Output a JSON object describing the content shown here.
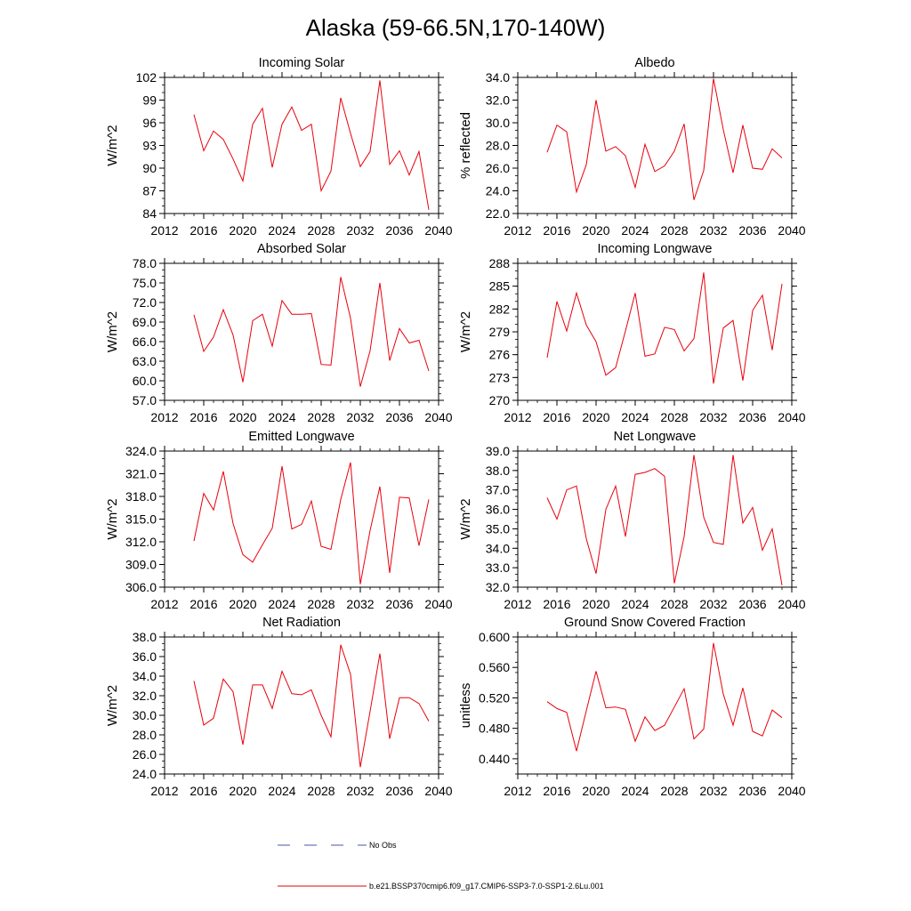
{
  "title": "Alaska (59-66.5N,170-140W)",
  "legend": [
    {
      "label": "No Obs",
      "color": "#4a56a8",
      "dash": true
    },
    {
      "label": "b.e21.BSSP370cmip6.f09_g17.CMIP6-SSP3-7.0-SSP1-2.6Lu.001",
      "color": "#e8000b",
      "dash": false
    }
  ],
  "colors": {
    "series": "#e8000b",
    "obs": "#4a56a8"
  },
  "chart_data": [
    {
      "type": "line",
      "title": "Incoming Solar",
      "ylabel": "W/m^2",
      "xlim": [
        2012,
        2040
      ],
      "ylim": [
        84,
        102
      ],
      "xticks": [
        2012,
        2016,
        2020,
        2024,
        2028,
        2032,
        2036,
        2040
      ],
      "yticks": [
        "84",
        "87",
        "90",
        "93",
        "96",
        "99",
        "102"
      ],
      "x": [
        2015,
        2016,
        2017,
        2018,
        2019,
        2020,
        2021,
        2022,
        2023,
        2024,
        2025,
        2026,
        2027,
        2028,
        2029,
        2030,
        2031,
        2032,
        2033,
        2034,
        2035,
        2036,
        2037,
        2038,
        2039
      ],
      "series": [
        {
          "name": "b.e21.BSSP370cmip6.f09_g17.CMIP6-SSP3-7.0-SSP1-2.6Lu.001",
          "values": [
            97.1,
            92.3,
            94.9,
            93.8,
            91.2,
            88.3,
            95.8,
            97.9,
            90.1,
            95.8,
            98.1,
            95.0,
            95.8,
            87.0,
            89.6,
            99.3,
            94.6,
            90.2,
            92.2,
            101.6,
            90.5,
            92.3,
            89.1,
            92.2,
            84.5
          ]
        }
      ]
    },
    {
      "type": "line",
      "title": "Albedo",
      "ylabel": "% reflected",
      "xlim": [
        2012,
        2040
      ],
      "ylim": [
        22,
        34
      ],
      "xticks": [
        2012,
        2016,
        2020,
        2024,
        2028,
        2032,
        2036,
        2040
      ],
      "yticks": [
        "22.0",
        "24.0",
        "26.0",
        "28.0",
        "30.0",
        "32.0",
        "34.0"
      ],
      "x": [
        2015,
        2016,
        2017,
        2018,
        2019,
        2020,
        2021,
        2022,
        2023,
        2024,
        2025,
        2026,
        2027,
        2028,
        2029,
        2030,
        2031,
        2032,
        2033,
        2034,
        2035,
        2036,
        2037,
        2038,
        2039
      ],
      "series": [
        {
          "name": "b.e21.BSSP370cmip6.f09_g17.CMIP6-SSP3-7.0-SSP1-2.6Lu.001",
          "values": [
            27.4,
            29.8,
            29.2,
            23.9,
            26.3,
            32.0,
            27.5,
            27.9,
            27.1,
            24.3,
            28.1,
            25.7,
            26.2,
            27.5,
            29.9,
            23.2,
            25.8,
            33.9,
            29.4,
            25.6,
            29.8,
            26.0,
            25.9,
            27.7,
            26.9
          ]
        }
      ]
    },
    {
      "type": "line",
      "title": "Absorbed Solar",
      "ylabel": "W/m^2",
      "xlim": [
        2012,
        2040
      ],
      "ylim": [
        57,
        78
      ],
      "xticks": [
        2012,
        2016,
        2020,
        2024,
        2028,
        2032,
        2036,
        2040
      ],
      "yticks": [
        "57.0",
        "60.0",
        "63.0",
        "66.0",
        "69.0",
        "72.0",
        "75.0",
        "78.0"
      ],
      "x": [
        2015,
        2016,
        2017,
        2018,
        2019,
        2020,
        2021,
        2022,
        2023,
        2024,
        2025,
        2026,
        2027,
        2028,
        2029,
        2030,
        2031,
        2032,
        2033,
        2034,
        2035,
        2036,
        2037,
        2038,
        2039
      ],
      "series": [
        {
          "name": "b.e21.BSSP370cmip6.f09_g17.CMIP6-SSP3-7.0-SSP1-2.6Lu.001",
          "values": [
            70.1,
            64.5,
            66.7,
            70.9,
            67.0,
            59.8,
            69.2,
            70.2,
            65.3,
            72.3,
            70.2,
            70.2,
            70.3,
            62.5,
            62.4,
            75.9,
            69.6,
            59.1,
            64.6,
            75.0,
            63.1,
            68.0,
            65.8,
            66.2,
            61.5
          ]
        }
      ]
    },
    {
      "type": "line",
      "title": "Incoming Longwave",
      "ylabel": "W/m^2",
      "xlim": [
        2012,
        2040
      ],
      "ylim": [
        270,
        288
      ],
      "xticks": [
        2012,
        2016,
        2020,
        2024,
        2028,
        2032,
        2036,
        2040
      ],
      "yticks": [
        "270",
        "273",
        "276",
        "279",
        "282",
        "285",
        "288"
      ],
      "x": [
        2015,
        2016,
        2017,
        2018,
        2019,
        2020,
        2021,
        2022,
        2023,
        2024,
        2025,
        2026,
        2027,
        2028,
        2029,
        2030,
        2031,
        2032,
        2033,
        2034,
        2035,
        2036,
        2037,
        2038,
        2039
      ],
      "series": [
        {
          "name": "b.e21.BSSP370cmip6.f09_g17.CMIP6-SSP3-7.0-SSP1-2.6Lu.001",
          "values": [
            275.6,
            283.0,
            279.1,
            284.1,
            279.9,
            277.7,
            273.3,
            274.3,
            279.1,
            284.1,
            275.8,
            276.1,
            279.6,
            279.3,
            276.5,
            278.1,
            286.8,
            272.2,
            279.5,
            280.5,
            272.6,
            281.8,
            283.8,
            276.6,
            285.3
          ]
        }
      ]
    },
    {
      "type": "line",
      "title": "Emitted Longwave",
      "ylabel": "W/m^2",
      "xlim": [
        2012,
        2040
      ],
      "ylim": [
        306,
        324
      ],
      "xticks": [
        2012,
        2016,
        2020,
        2024,
        2028,
        2032,
        2036,
        2040
      ],
      "yticks": [
        "306.0",
        "309.0",
        "312.0",
        "315.0",
        "318.0",
        "321.0",
        "324.0"
      ],
      "x": [
        2015,
        2016,
        2017,
        2018,
        2019,
        2020,
        2021,
        2022,
        2023,
        2024,
        2025,
        2026,
        2027,
        2028,
        2029,
        2030,
        2031,
        2032,
        2033,
        2034,
        2035,
        2036,
        2037,
        2038,
        2039
      ],
      "series": [
        {
          "name": "b.e21.BSSP370cmip6.f09_g17.CMIP6-SSP3-7.0-SSP1-2.6Lu.001",
          "values": [
            312.1,
            318.4,
            316.2,
            321.3,
            314.4,
            310.3,
            309.3,
            311.6,
            313.8,
            322.0,
            313.7,
            314.3,
            317.4,
            311.4,
            311.0,
            317.6,
            322.5,
            306.4,
            313.5,
            319.3,
            307.9,
            317.9,
            317.8,
            311.5,
            317.6
          ]
        }
      ]
    },
    {
      "type": "line",
      "title": "Net Longwave",
      "ylabel": "W/m^2",
      "xlim": [
        2012,
        2040
      ],
      "ylim": [
        32,
        39
      ],
      "xticks": [
        2012,
        2016,
        2020,
        2024,
        2028,
        2032,
        2036,
        2040
      ],
      "yticks": [
        "32.0",
        "33.0",
        "34.0",
        "35.0",
        "36.0",
        "37.0",
        "38.0",
        "39.0"
      ],
      "x": [
        2015,
        2016,
        2017,
        2018,
        2019,
        2020,
        2021,
        2022,
        2023,
        2024,
        2025,
        2026,
        2027,
        2028,
        2029,
        2030,
        2031,
        2032,
        2033,
        2034,
        2035,
        2036,
        2037,
        2038,
        2039
      ],
      "series": [
        {
          "name": "b.e21.BSSP370cmip6.f09_g17.CMIP6-SSP3-7.0-SSP1-2.6Lu.001",
          "values": [
            36.6,
            35.5,
            37.0,
            37.2,
            34.5,
            32.7,
            36.0,
            37.2,
            34.6,
            37.8,
            37.9,
            38.1,
            37.7,
            32.2,
            34.6,
            38.8,
            35.6,
            34.3,
            34.2,
            38.8,
            35.3,
            36.1,
            33.9,
            35.0,
            32.1
          ]
        }
      ]
    },
    {
      "type": "line",
      "title": "Net Radiation",
      "ylabel": "W/m^2",
      "xlim": [
        2012,
        2040
      ],
      "ylim": [
        24,
        38
      ],
      "xticks": [
        2012,
        2016,
        2020,
        2024,
        2028,
        2032,
        2036,
        2040
      ],
      "yticks": [
        "24.0",
        "26.0",
        "28.0",
        "30.0",
        "32.0",
        "34.0",
        "36.0",
        "38.0"
      ],
      "x": [
        2015,
        2016,
        2017,
        2018,
        2019,
        2020,
        2021,
        2022,
        2023,
        2024,
        2025,
        2026,
        2027,
        2028,
        2029,
        2030,
        2031,
        2032,
        2033,
        2034,
        2035,
        2036,
        2037,
        2038,
        2039
      ],
      "series": [
        {
          "name": "b.e21.BSSP370cmip6.f09_g17.CMIP6-SSP3-7.0-SSP1-2.6Lu.001",
          "values": [
            33.5,
            29.0,
            29.7,
            33.7,
            32.4,
            27.0,
            33.1,
            33.1,
            30.7,
            34.5,
            32.2,
            32.1,
            32.6,
            30.0,
            27.8,
            37.2,
            34.2,
            24.7,
            30.4,
            36.3,
            27.6,
            31.8,
            31.8,
            31.2,
            29.4
          ]
        }
      ]
    },
    {
      "type": "line",
      "title": "Ground Snow Covered Fraction",
      "ylabel": "unitless",
      "xlim": [
        2012,
        2040
      ],
      "ylim": [
        0.42,
        0.6
      ],
      "xticks": [
        2012,
        2016,
        2020,
        2024,
        2028,
        2032,
        2036,
        2040
      ],
      "yticks": [
        "0.440",
        "0.480",
        "0.520",
        "0.560",
        "0.600"
      ],
      "ytick_values": [
        0.44,
        0.48,
        0.52,
        0.56,
        0.6
      ],
      "x": [
        2015,
        2016,
        2017,
        2018,
        2019,
        2020,
        2021,
        2022,
        2023,
        2024,
        2025,
        2026,
        2027,
        2028,
        2029,
        2030,
        2031,
        2032,
        2033,
        2034,
        2035,
        2036,
        2037,
        2038,
        2039
      ],
      "series": [
        {
          "name": "b.e21.BSSP370cmip6.f09_g17.CMIP6-SSP3-7.0-SSP1-2.6Lu.001",
          "values": [
            0.515,
            0.506,
            0.501,
            0.45,
            0.503,
            0.555,
            0.507,
            0.508,
            0.505,
            0.463,
            0.495,
            0.477,
            0.484,
            0.508,
            0.532,
            0.466,
            0.479,
            0.592,
            0.525,
            0.484,
            0.533,
            0.476,
            0.47,
            0.504,
            0.494
          ]
        }
      ]
    }
  ]
}
